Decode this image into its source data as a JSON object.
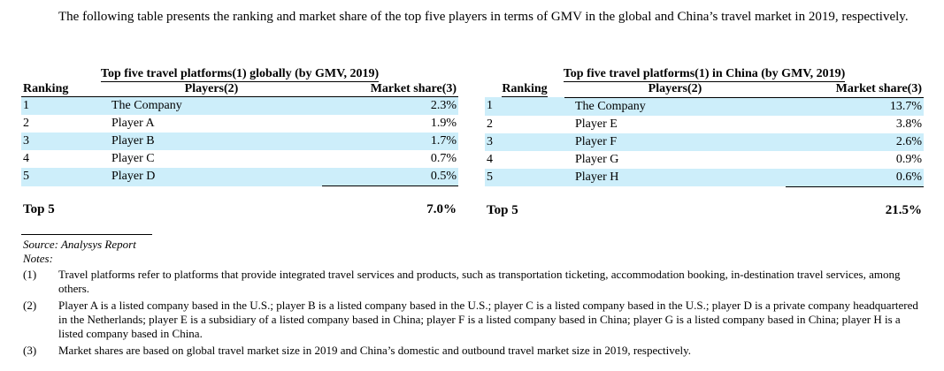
{
  "intro": "The following table presents the ranking and market share of the top five players in terms of GMV in the global and China’s travel market in 2019, respectively.",
  "tables": [
    {
      "title": "Top five travel platforms(1) globally (by GMV, 2019)",
      "headers": {
        "ranking": "Ranking",
        "players": "Players(2)",
        "share": "Market share(3)"
      },
      "rows": [
        {
          "rank": "1",
          "player": "The Company",
          "share": "2.3%"
        },
        {
          "rank": "2",
          "player": "Player A",
          "share": "1.9%"
        },
        {
          "rank": "3",
          "player": "Player B",
          "share": "1.7%"
        },
        {
          "rank": "4",
          "player": "Player C",
          "share": "0.7%"
        },
        {
          "rank": "5",
          "player": "Player D",
          "share": "0.5%"
        }
      ],
      "total": {
        "label": "Top 5",
        "share": "7.0%"
      }
    },
    {
      "title": "Top five travel platforms(1) in China (by GMV,  2019)",
      "headers": {
        "ranking": "Ranking",
        "players": "Players(2)",
        "share": "Market share(3)"
      },
      "rows": [
        {
          "rank": "1",
          "player": "The Company",
          "share": "13.7%"
        },
        {
          "rank": "2",
          "player": "Player E",
          "share": "3.8%"
        },
        {
          "rank": "3",
          "player": "Player F",
          "share": "2.6%"
        },
        {
          "rank": "4",
          "player": "Player G",
          "share": "0.9%"
        },
        {
          "rank": "5",
          "player": "Player H",
          "share": "0.6%"
        }
      ],
      "total": {
        "label": "Top 5",
        "share": "21.5%"
      }
    }
  ],
  "source": "Source: Analysys Report",
  "notes_label": "Notes:",
  "notes": [
    {
      "num": "(1)",
      "text": "Travel platforms refer to platforms that provide integrated travel services and products, such as transportation ticketing, accommodation booking, in-destination travel services, among others."
    },
    {
      "num": "(2)",
      "text": "Player A is a listed company based in the U.S.; player B is a listed company based in the U.S.; player C is a listed company based in the U.S.; player D is a private company headquartered in the Netherlands; player E is a subsidiary of a listed company based in China; player F is a listed company based in China; player G is a listed company based in China; player H is a listed company based in China."
    },
    {
      "num": "(3)",
      "text": "Market shares are based on global travel market size in 2019 and China’s domestic and outbound travel market size in 2019, respectively."
    }
  ],
  "colors": {
    "row_shade": "#cdeefa",
    "text": "#000000"
  }
}
